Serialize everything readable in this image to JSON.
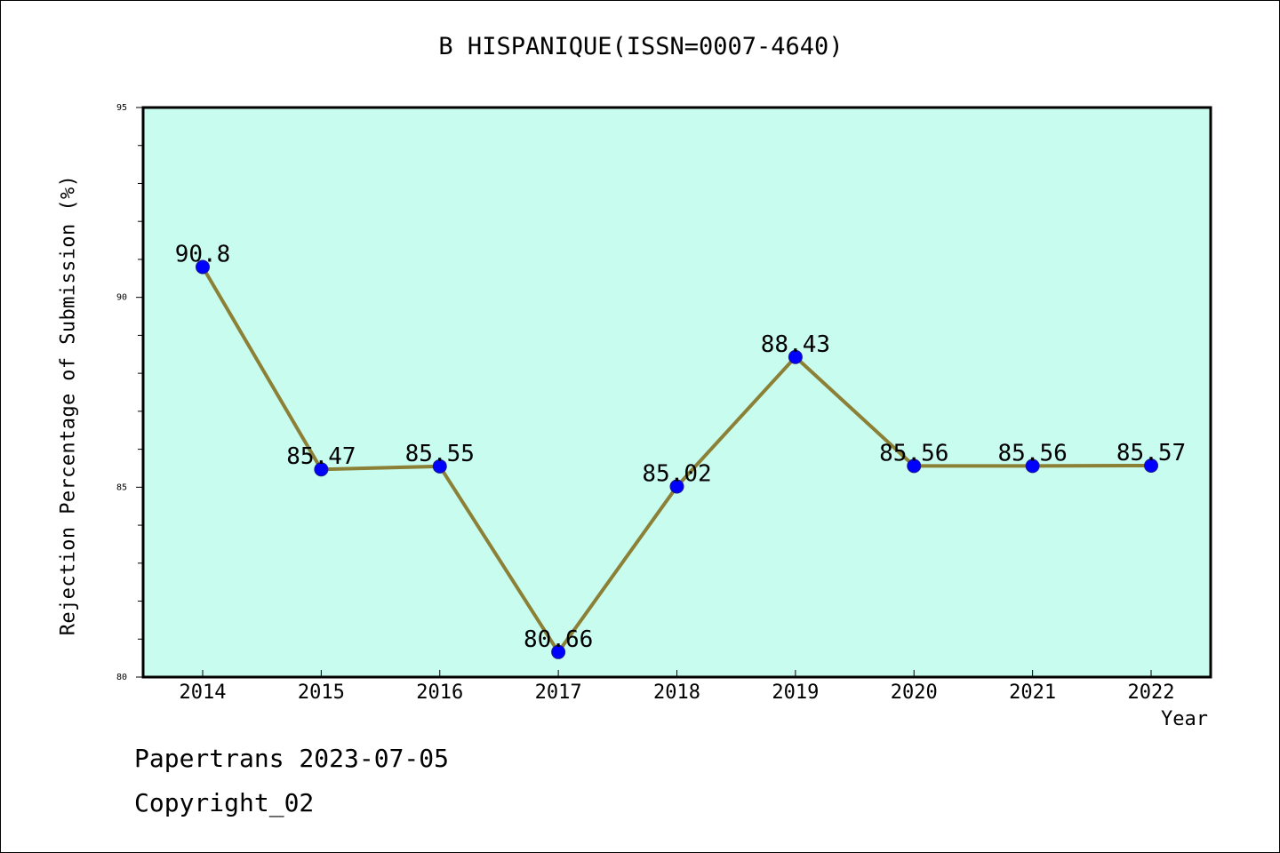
{
  "colors": {
    "plot_background": "#c8fcee",
    "line": "#8b8036",
    "marker": "#0000ff",
    "axis": "#000000"
  },
  "chart_data": {
    "type": "line",
    "title": "B HISPANIQUE(ISSN=0007-4640)",
    "xlabel": "Year",
    "ylabel": "Rejection Percentage of Submission (%)",
    "x": [
      "2014",
      "2015",
      "2016",
      "2017",
      "2018",
      "2019",
      "2020",
      "2021",
      "2022"
    ],
    "series": [
      {
        "values": [
          90.8,
          85.47,
          85.55,
          80.66,
          85.02,
          88.43,
          85.56,
          85.56,
          85.57
        ],
        "data_labels": [
          "90.8",
          "85.47",
          "85.55",
          "80.66",
          "85.02",
          "88.43",
          "85.56",
          "85.56",
          "85.57"
        ]
      }
    ],
    "ylim": [
      80,
      95
    ],
    "y_ticks": [
      "80",
      "85",
      "90",
      "95"
    ],
    "y_minor_step": 1,
    "grid": false,
    "legend": "none"
  },
  "footer": {
    "line1": "Papertrans 2023-07-05",
    "line2": "Copyright_02"
  }
}
